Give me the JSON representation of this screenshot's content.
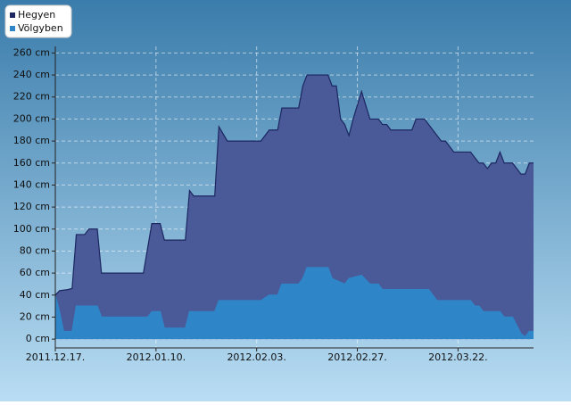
{
  "chart_data": {
    "type": "area",
    "legend": "top-left",
    "grid": true,
    "xlim": [
      "2011.12.17.",
      "2012.04.09."
    ],
    "xticks": [
      "2011.12.17.",
      "2012.01.10.",
      "2012.02.03.",
      "2012.02.27.",
      "2012.03.22."
    ],
    "ylim": [
      -8,
      266
    ],
    "yticks": [
      {
        "value": 0,
        "label": "0 cm"
      },
      {
        "value": 20,
        "label": "20 cm"
      },
      {
        "value": 40,
        "label": "40 cm"
      },
      {
        "value": 60,
        "label": "60 cm"
      },
      {
        "value": 80,
        "label": "80 cm"
      },
      {
        "value": 100,
        "label": "100 cm"
      },
      {
        "value": 120,
        "label": "120 cm"
      },
      {
        "value": 140,
        "label": "140 cm"
      },
      {
        "value": 160,
        "label": "160 cm"
      },
      {
        "value": 180,
        "label": "180 cm"
      },
      {
        "value": 200,
        "label": "200 cm"
      },
      {
        "value": 220,
        "label": "220 cm"
      },
      {
        "value": 240,
        "label": "240 cm"
      },
      {
        "value": 260,
        "label": "260 cm"
      }
    ],
    "series": [
      {
        "name": "Hegyen",
        "color": "#4a5a98",
        "line_color": "#1c2660",
        "x": [
          "2011.12.17.",
          "2011.12.18.",
          "2011.12.20.",
          "2011.12.21.",
          "2011.12.22.",
          "2011.12.24.",
          "2011.12.25.",
          "2011.12.27.",
          "2011.12.28.",
          "2012.01.07.",
          "2012.01.09.",
          "2012.01.11.",
          "2012.01.12.",
          "2012.01.17.",
          "2012.01.18.",
          "2012.01.19.",
          "2012.01.24.",
          "2012.01.25.",
          "2012.01.27.",
          "2012.02.04.",
          "2012.02.06.",
          "2012.02.08.",
          "2012.02.09.",
          "2012.02.13.",
          "2012.02.14.",
          "2012.02.15.",
          "2012.02.20.",
          "2012.02.21.",
          "2012.02.22.",
          "2012.02.23.",
          "2012.02.24.",
          "2012.02.25.",
          "2012.02.26.",
          "2012.02.28.",
          "2012.03.01.",
          "2012.03.03.",
          "2012.03.04.",
          "2012.03.05.",
          "2012.03.06.",
          "2012.03.11.",
          "2012.03.12.",
          "2012.03.14.",
          "2012.03.16.",
          "2012.03.18.",
          "2012.03.19.",
          "2012.03.21.",
          "2012.03.25.",
          "2012.03.27.",
          "2012.03.28.",
          "2012.03.29.",
          "2012.03.30.",
          "2012.03.31.",
          "2012.04.01.",
          "2012.04.02.",
          "2012.04.04.",
          "2012.04.06.",
          "2012.04.07.",
          "2012.04.08.",
          "2012.04.09."
        ],
        "values": [
          40,
          44,
          45,
          46,
          95,
          95,
          100,
          100,
          60,
          60,
          105,
          105,
          90,
          90,
          135,
          130,
          130,
          193,
          180,
          180,
          190,
          190,
          210,
          210,
          230,
          240,
          240,
          230,
          230,
          200,
          195,
          185,
          200,
          225,
          200,
          200,
          195,
          195,
          190,
          190,
          200,
          200,
          190,
          180,
          180,
          170,
          170,
          160,
          160,
          155,
          160,
          160,
          170,
          160,
          160,
          150,
          150,
          160,
          160
        ]
      },
      {
        "name": "Völgyben",
        "color": "#2e86c9",
        "line_color": "#2e86c9",
        "x": [
          "2011.12.17.",
          "2011.12.18.",
          "2011.12.19.",
          "2011.12.21.",
          "2011.12.22.",
          "2011.12.27.",
          "2011.12.28.",
          "2012.01.08.",
          "2012.01.09.",
          "2012.01.11.",
          "2012.01.12.",
          "2012.01.17.",
          "2012.01.18.",
          "2012.01.24.",
          "2012.01.25.",
          "2012.02.04.",
          "2012.02.06.",
          "2012.02.08.",
          "2012.02.09.",
          "2012.02.13.",
          "2012.02.14.",
          "2012.02.15.",
          "2012.02.20.",
          "2012.02.21.",
          "2012.02.24.",
          "2012.02.25.",
          "2012.02.28.",
          "2012.03.01.",
          "2012.03.03.",
          "2012.03.04.",
          "2012.03.15.",
          "2012.03.17.",
          "2012.03.25.",
          "2012.03.26.",
          "2012.03.27.",
          "2012.03.28.",
          "2012.04.01.",
          "2012.04.02.",
          "2012.04.04.",
          "2012.04.06.",
          "2012.04.07.",
          "2012.04.08.",
          "2012.04.09."
        ],
        "values": [
          40,
          25,
          7,
          7,
          30,
          30,
          20,
          20,
          25,
          25,
          10,
          10,
          25,
          25,
          35,
          35,
          40,
          40,
          50,
          50,
          55,
          65,
          65,
          55,
          50,
          55,
          58,
          50,
          50,
          45,
          45,
          35,
          35,
          30,
          30,
          25,
          25,
          20,
          20,
          5,
          2,
          7,
          7
        ]
      }
    ]
  }
}
